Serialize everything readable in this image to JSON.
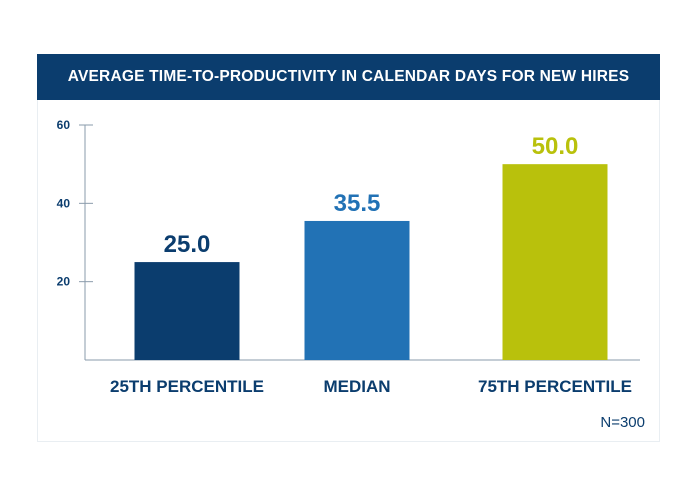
{
  "chart_data": {
    "type": "bar",
    "title": "AVERAGE TIME-TO-PRODUCTIVITY IN CALENDAR DAYS FOR NEW HIRES",
    "categories": [
      "25TH PERCENTILE",
      "MEDIAN",
      "75TH PERCENTILE"
    ],
    "values": [
      25.0,
      35.5,
      50.0
    ],
    "value_labels": [
      "25.0",
      "35.5",
      "50.0"
    ],
    "colors": [
      "#0b3d6e",
      "#2272b5",
      "#b9c10c"
    ],
    "ylim": [
      0,
      60
    ],
    "yticks": [
      20,
      40,
      60
    ],
    "ytick_labels": [
      "20",
      "40",
      "60"
    ],
    "xlabel": "",
    "ylabel": "",
    "grid": false,
    "legend": "none"
  },
  "note": "N=300"
}
